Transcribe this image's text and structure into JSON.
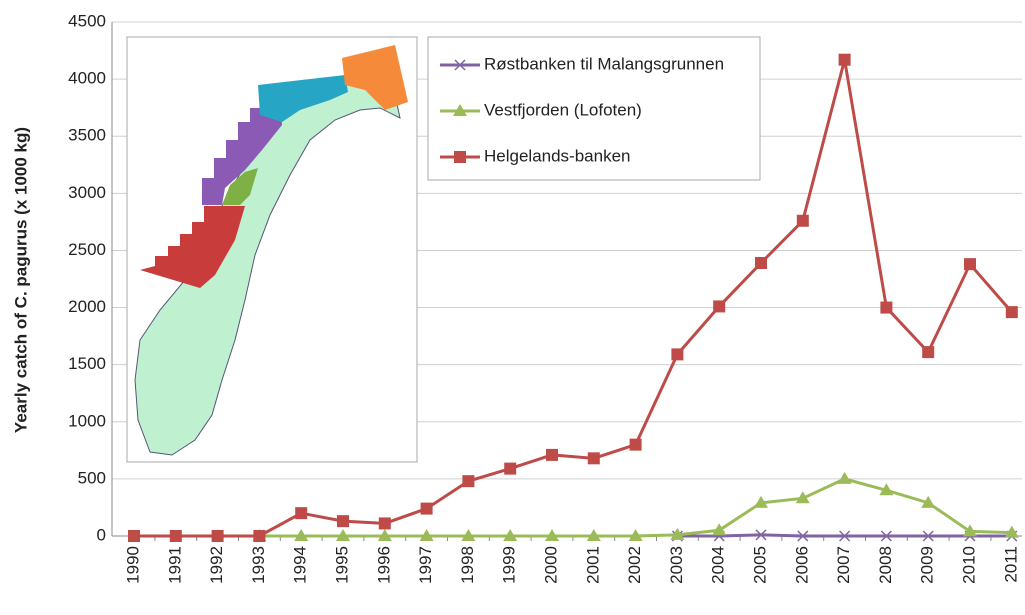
{
  "chart_data": {
    "type": "line",
    "y_label": "Yearly catch of C. pagurus (x 1000 kg)",
    "categories": [
      "1990",
      "1991",
      "1992",
      "1993",
      "1994",
      "1995",
      "1996",
      "1997",
      "1998",
      "1999",
      "2000",
      "2001",
      "2002",
      "2003",
      "2004",
      "2005",
      "2006",
      "2007",
      "2008",
      "2009",
      "2010",
      "2011"
    ],
    "series": [
      {
        "name": "Røstbanken til Malangsgrunnen",
        "color": "#8064a2",
        "marker": "x",
        "values": [
          null,
          null,
          null,
          null,
          null,
          null,
          null,
          null,
          null,
          null,
          null,
          null,
          null,
          0,
          0,
          10,
          0,
          0,
          0,
          0,
          0,
          0
        ]
      },
      {
        "name": "Vestfjorden (Lofoten)",
        "color": "#9bbb59",
        "marker": "triangle",
        "values": [
          null,
          null,
          null,
          0,
          0,
          0,
          0,
          0,
          0,
          0,
          0,
          0,
          0,
          10,
          50,
          290,
          330,
          500,
          400,
          290,
          40,
          30
        ]
      },
      {
        "name": "Helgelands-banken",
        "color": "#be4b48",
        "marker": "square",
        "values": [
          0,
          0,
          0,
          0,
          200,
          130,
          110,
          240,
          480,
          590,
          710,
          680,
          800,
          1590,
          2010,
          2390,
          2760,
          4170,
          2000,
          1610,
          2380,
          1960
        ]
      }
    ],
    "ylim": [
      0,
      4500
    ],
    "yticks": [
      0,
      500,
      1000,
      1500,
      2000,
      2500,
      3000,
      3500,
      4000,
      4500
    ],
    "grid": true
  }
}
